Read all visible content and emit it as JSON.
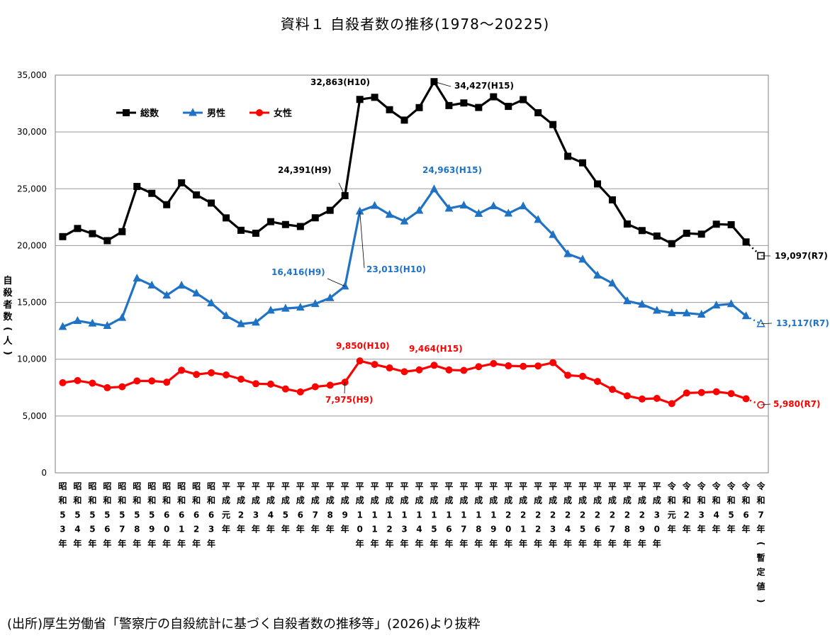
{
  "title": "資料１ 自殺者数の推移(1978～20225)",
  "source": "(出所)厚生労働省「警察庁の自殺統計に基づく自殺者数の推移等」(2026)より抜粋",
  "chart_data": {
    "type": "line",
    "ylabel": "自殺者数(人)",
    "ylim": [
      0,
      35000
    ],
    "yticks": [
      0,
      5000,
      10000,
      15000,
      20000,
      25000,
      30000,
      35000
    ],
    "ytick_labels": [
      "0",
      "5,000",
      "10,000",
      "15,000",
      "20,000",
      "25,000",
      "30,000",
      "35,000"
    ],
    "grid": true,
    "legend_position": "top-left",
    "categories": [
      "昭和53年",
      "昭和54年",
      "昭和55年",
      "昭和56年",
      "昭和57年",
      "昭和58年",
      "昭和59年",
      "昭和60年",
      "昭和61年",
      "昭和62年",
      "昭和63年",
      "平成元年",
      "平成2年",
      "平成3年",
      "平成4年",
      "平成5年",
      "平成6年",
      "平成7年",
      "平成8年",
      "平成9年",
      "平成10年",
      "平成11年",
      "平成12年",
      "平成13年",
      "平成14年",
      "平成15年",
      "平成16年",
      "平成17年",
      "平成18年",
      "平成19年",
      "平成20年",
      "平成21年",
      "平成22年",
      "平成23年",
      "平成24年",
      "平成25年",
      "平成26年",
      "平成27年",
      "平成28年",
      "平成29年",
      "平成30年",
      "令和元年",
      "令和2年",
      "令和3年",
      "令和4年",
      "令和5年",
      "令和6年",
      "令和7年(暫定値)"
    ],
    "series": [
      {
        "name": "総数",
        "color": "#000000",
        "marker": "square",
        "values": [
          20788,
          21503,
          21048,
          20434,
          21228,
          25202,
          24596,
          23599,
          25524,
          24460,
          23742,
          22436,
          21346,
          21084,
          22104,
          21851,
          21679,
          22445,
          23104,
          24391,
          32863,
          33048,
          31957,
          31042,
          32143,
          34427,
          32325,
          32552,
          32155,
          33093,
          32249,
          32845,
          31690,
          30651,
          27858,
          27283,
          25427,
          24025,
          21897,
          21321,
          20840,
          20169,
          21081,
          21007,
          21881,
          21837,
          20320,
          19097
        ]
      },
      {
        "name": "男性",
        "color": "#1f72c4",
        "marker": "triangle",
        "values": [
          12859,
          13386,
          13155,
          12942,
          13654,
          17116,
          16508,
          15624,
          16497,
          15802,
          14934,
          13818,
          13102,
          13242,
          14296,
          14468,
          14560,
          14874,
          15393,
          16416,
          23013,
          23512,
          22727,
          22144,
          23080,
          24963,
          23272,
          23540,
          22813,
          23478,
          22831,
          23472,
          22283,
          20955,
          19273,
          18787,
          17386,
          16681,
          15121,
          14826,
          14290,
          14078,
          14055,
          13939,
          14746,
          14862,
          13801,
          13117
        ]
      },
      {
        "name": "女性",
        "color": "#ff0000",
        "marker": "circle",
        "values": [
          7929,
          8117,
          7893,
          7492,
          7574,
          8086,
          8088,
          7975,
          9027,
          8658,
          8808,
          8618,
          8244,
          7842,
          7808,
          7383,
          7119,
          7571,
          7711,
          7975,
          9850,
          9536,
          9230,
          8898,
          9063,
          9464,
          9053,
          9012,
          9342,
          9615,
          9418,
          9373,
          9407,
          9696,
          8585,
          8496,
          8041,
          7344,
          6776,
          6495,
          6550,
          6091,
          7026,
          7068,
          7135,
          6975,
          6519,
          5980
        ]
      }
    ],
    "annotations": [
      {
        "text": "32,863(H10)",
        "series": "総数",
        "index": 20
      },
      {
        "text": "34,427(H15)",
        "series": "総数",
        "index": 25
      },
      {
        "text": "24,391(H9)",
        "series": "総数",
        "index": 19
      },
      {
        "text": "19,097(R7)",
        "series": "総数",
        "index": 47
      },
      {
        "text": "24,963(H15)",
        "series": "男性",
        "index": 25
      },
      {
        "text": "16,416(H9)",
        "series": "男性",
        "index": 19
      },
      {
        "text": "23,013(H10)",
        "series": "男性",
        "index": 20
      },
      {
        "text": "13,117(R7)",
        "series": "男性",
        "index": 47
      },
      {
        "text": "9,850(H10)",
        "series": "女性",
        "index": 20
      },
      {
        "text": "9,464(H15)",
        "series": "女性",
        "index": 25
      },
      {
        "text": "7,975(H9)",
        "series": "女性",
        "index": 19
      },
      {
        "text": "5,980(R7)",
        "series": "女性",
        "index": 47
      }
    ]
  }
}
